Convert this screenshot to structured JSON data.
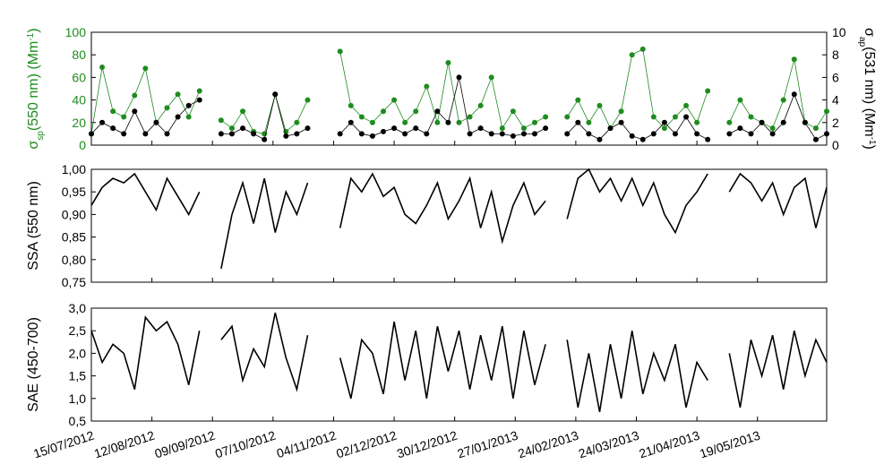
{
  "chart_data": [
    {
      "type": "line",
      "markers": true,
      "y_label": [
        "σ",
        "sp",
        "(550 nm) (Mm",
        "-1",
        ")"
      ],
      "y2_label": [
        "σ",
        "ap",
        "(531 nm) (Mm",
        "-1",
        ")"
      ],
      "xlim": [
        "15/07/2012",
        "20/06/2013"
      ],
      "ylim": [
        0,
        100
      ],
      "yticks": [
        0,
        20,
        40,
        60,
        80,
        100
      ],
      "y2lim": [
        0,
        10
      ],
      "y2ticks": [
        0,
        2,
        4,
        6,
        8,
        10
      ],
      "x": [
        "15/07/2012",
        "20/07/2012",
        "25/07/2012",
        "30/07/2012",
        "04/08/2012",
        "09/08/2012",
        "14/08/2012",
        "19/08/2012",
        "24/08/2012",
        "29/08/2012",
        "03/09/2012",
        "08/09/2012",
        "13/09/2012",
        "18/09/2012",
        "23/09/2012",
        "28/09/2012",
        "03/10/2012",
        "08/10/2012",
        "13/10/2012",
        "18/10/2012",
        "23/10/2012",
        "28/10/2012",
        "02/11/2012",
        "07/11/2012",
        "12/11/2012",
        "17/11/2012",
        "22/11/2012",
        "27/11/2012",
        "02/12/2012",
        "07/12/2012",
        "12/12/2012",
        "17/12/2012",
        "22/12/2012",
        "27/12/2012",
        "01/01/2013",
        "06/01/2013",
        "11/01/2013",
        "16/01/2013",
        "21/01/2013",
        "26/01/2013",
        "31/01/2013",
        "05/02/2013",
        "10/02/2013",
        "15/02/2013",
        "20/02/2013",
        "25/02/2013",
        "02/03/2013",
        "07/03/2013",
        "12/03/2013",
        "17/03/2013",
        "22/03/2013",
        "27/03/2013",
        "01/04/2013",
        "06/04/2013",
        "11/04/2013",
        "16/04/2013",
        "21/04/2013",
        "26/04/2013",
        "01/05/2013",
        "06/05/2013",
        "11/05/2013",
        "16/05/2013",
        "21/05/2013",
        "26/05/2013",
        "31/05/2013",
        "05/06/2013",
        "10/06/2013",
        "15/06/2013",
        "20/06/2013"
      ],
      "series": [
        {
          "name": "σsp",
          "color": "#1e8c1e",
          "values": [
            10,
            69,
            30,
            25,
            44,
            68,
            20,
            33,
            45,
            25,
            48,
            null,
            22,
            15,
            30,
            12,
            10,
            45,
            12,
            20,
            40,
            null,
            null,
            83,
            35,
            25,
            20,
            30,
            40,
            20,
            30,
            52,
            20,
            73,
            20,
            25,
            35,
            60,
            15,
            30,
            15,
            20,
            25,
            null,
            25,
            40,
            20,
            35,
            15,
            30,
            80,
            85,
            25,
            15,
            25,
            35,
            20,
            48,
            null,
            20,
            40,
            25,
            20,
            15,
            40,
            76,
            20,
            15,
            30
          ]
        },
        {
          "name": "σap",
          "color": "#000000",
          "axis": "y2",
          "values": [
            1,
            2,
            1.5,
            1,
            3,
            1,
            2,
            1,
            2.5,
            3.5,
            4,
            null,
            1,
            1,
            1.5,
            1,
            0.5,
            4.5,
            0.8,
            1,
            1.5,
            null,
            null,
            1,
            2,
            1,
            0.8,
            1.2,
            1.5,
            1,
            1.5,
            1,
            3,
            2,
            6,
            1,
            1.5,
            1,
            1,
            0.8,
            1,
            1,
            1.5,
            null,
            1,
            2,
            1,
            0.5,
            1.5,
            2,
            0.8,
            0.5,
            1,
            2,
            1,
            2.5,
            1,
            0.5,
            null,
            1,
            1.5,
            1,
            2,
            1,
            2,
            4.5,
            2,
            0.5,
            1
          ]
        }
      ]
    },
    {
      "type": "line",
      "markers": false,
      "y_label": [
        "SSA (550 nm)"
      ],
      "xlim": [
        "15/07/2012",
        "20/06/2013"
      ],
      "ylim": [
        0.75,
        1
      ],
      "yticks": [
        {
          "value": 0.75,
          "label": "0,75"
        },
        {
          "value": 0.8,
          "label": "0,80"
        },
        {
          "value": 0.85,
          "label": "0,85"
        },
        {
          "value": 0.9,
          "label": "0,90"
        },
        {
          "value": 0.95,
          "label": "0,95"
        },
        {
          "value": 1,
          "label": "1,00"
        }
      ],
      "x": [
        "15/07/2012",
        "20/07/2012",
        "25/07/2012",
        "30/07/2012",
        "04/08/2012",
        "09/08/2012",
        "14/08/2012",
        "19/08/2012",
        "24/08/2012",
        "29/08/2012",
        "03/09/2012",
        "08/09/2012",
        "13/09/2012",
        "18/09/2012",
        "23/09/2012",
        "28/09/2012",
        "03/10/2012",
        "08/10/2012",
        "13/10/2012",
        "18/10/2012",
        "23/10/2012",
        "28/10/2012",
        "02/11/2012",
        "07/11/2012",
        "12/11/2012",
        "17/11/2012",
        "22/11/2012",
        "27/11/2012",
        "02/12/2012",
        "07/12/2012",
        "12/12/2012",
        "17/12/2012",
        "22/12/2012",
        "27/12/2012",
        "01/01/2013",
        "06/01/2013",
        "11/01/2013",
        "16/01/2013",
        "21/01/2013",
        "26/01/2013",
        "31/01/2013",
        "05/02/2013",
        "10/02/2013",
        "15/02/2013",
        "20/02/2013",
        "25/02/2013",
        "02/03/2013",
        "07/03/2013",
        "12/03/2013",
        "17/03/2013",
        "22/03/2013",
        "27/03/2013",
        "01/04/2013",
        "06/04/2013",
        "11/04/2013",
        "16/04/2013",
        "21/04/2013",
        "26/04/2013",
        "01/05/2013",
        "06/05/2013",
        "11/05/2013",
        "16/05/2013",
        "21/05/2013",
        "26/05/2013",
        "31/05/2013",
        "05/06/2013",
        "10/06/2013",
        "15/06/2013",
        "20/06/2013"
      ],
      "series": [
        {
          "color": "#000000",
          "values": [
            0.92,
            0.96,
            0.98,
            0.97,
            0.99,
            0.95,
            0.91,
            0.98,
            0.94,
            0.9,
            0.95,
            null,
            0.78,
            0.9,
            0.97,
            0.88,
            0.98,
            0.86,
            0.95,
            0.9,
            0.97,
            null,
            null,
            0.87,
            0.98,
            0.95,
            0.99,
            0.94,
            0.96,
            0.9,
            0.88,
            0.92,
            0.97,
            0.89,
            0.93,
            0.98,
            0.87,
            0.95,
            0.84,
            0.92,
            0.97,
            0.9,
            0.93,
            null,
            0.89,
            0.98,
            1.0,
            0.95,
            0.98,
            0.93,
            0.98,
            0.92,
            0.97,
            0.9,
            0.86,
            0.92,
            0.95,
            0.99,
            null,
            0.95,
            0.99,
            0.97,
            0.93,
            0.97,
            0.9,
            0.96,
            0.98,
            0.87,
            0.96
          ]
        }
      ]
    },
    {
      "type": "line",
      "markers": false,
      "y_label": [
        "SAE (450-700)"
      ],
      "xlim": [
        "15/07/2012",
        "20/06/2013"
      ],
      "xticks": [
        "15/07/2012",
        "12/08/2012",
        "09/09/2012",
        "07/10/2012",
        "04/11/2012",
        "02/12/2012",
        "30/12/2012",
        "27/01/2013",
        "24/02/2013",
        "24/03/2013",
        "21/04/2013",
        "19/05/2013"
      ],
      "ylim": [
        0.5,
        3
      ],
      "yticks": [
        {
          "value": 0.5,
          "label": "0,5"
        },
        {
          "value": 1,
          "label": "1,0"
        },
        {
          "value": 1.5,
          "label": "1,5"
        },
        {
          "value": 2,
          "label": "2,0"
        },
        {
          "value": 2.5,
          "label": "2,5"
        },
        {
          "value": 3,
          "label": "3,0"
        }
      ],
      "x": [
        "15/07/2012",
        "20/07/2012",
        "25/07/2012",
        "30/07/2012",
        "04/08/2012",
        "09/08/2012",
        "14/08/2012",
        "19/08/2012",
        "24/08/2012",
        "29/08/2012",
        "03/09/2012",
        "08/09/2012",
        "13/09/2012",
        "18/09/2012",
        "23/09/2012",
        "28/09/2012",
        "03/10/2012",
        "08/10/2012",
        "13/10/2012",
        "18/10/2012",
        "23/10/2012",
        "28/10/2012",
        "02/11/2012",
        "07/11/2012",
        "12/11/2012",
        "17/11/2012",
        "22/11/2012",
        "27/11/2012",
        "02/12/2012",
        "07/12/2012",
        "12/12/2012",
        "17/12/2012",
        "22/12/2012",
        "27/12/2012",
        "01/01/2013",
        "06/01/2013",
        "11/01/2013",
        "16/01/2013",
        "21/01/2013",
        "26/01/2013",
        "31/01/2013",
        "05/02/2013",
        "10/02/2013",
        "15/02/2013",
        "20/02/2013",
        "25/02/2013",
        "02/03/2013",
        "07/03/2013",
        "12/03/2013",
        "17/03/2013",
        "22/03/2013",
        "27/03/2013",
        "01/04/2013",
        "06/04/2013",
        "11/04/2013",
        "16/04/2013",
        "21/04/2013",
        "26/04/2013",
        "01/05/2013",
        "06/05/2013",
        "11/05/2013",
        "16/05/2013",
        "21/05/2013",
        "26/05/2013",
        "31/05/2013",
        "05/06/2013",
        "10/06/2013",
        "15/06/2013",
        "20/06/2013"
      ],
      "series": [
        {
          "color": "#000000",
          "values": [
            2.5,
            1.8,
            2.2,
            2.0,
            1.2,
            2.8,
            2.5,
            2.7,
            2.2,
            1.3,
            2.5,
            null,
            2.3,
            2.6,
            1.4,
            2.1,
            1.7,
            2.9,
            1.9,
            1.2,
            2.4,
            null,
            null,
            1.9,
            1.0,
            2.3,
            2.0,
            1.1,
            2.7,
            1.4,
            2.5,
            1.0,
            2.6,
            1.6,
            2.5,
            1.2,
            2.4,
            1.4,
            2.6,
            1.0,
            2.5,
            1.3,
            2.2,
            null,
            2.3,
            0.8,
            2.0,
            0.7,
            2.2,
            1.0,
            2.5,
            1.1,
            2.0,
            1.4,
            2.2,
            0.8,
            1.8,
            1.4,
            null,
            2.0,
            0.8,
            2.3,
            1.5,
            2.4,
            1.2,
            2.5,
            1.5,
            2.3,
            1.8
          ]
        }
      ]
    }
  ]
}
